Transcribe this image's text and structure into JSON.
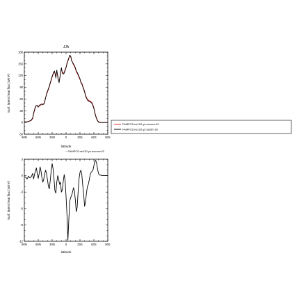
{
  "chart_data": [
    {
      "type": "line",
      "title": "JJA",
      "xlabel": "latitude",
      "ylabel": "Surf. latent heat flux (W/m²)",
      "x_tick_labels": [
        "90N",
        "60N",
        "30N",
        "0",
        "30S",
        "60S",
        "90S"
      ],
      "x_tick_values": [
        90,
        60,
        30,
        0,
        -30,
        -60,
        -90
      ],
      "xlim": [
        90,
        -90
      ],
      "ylim": [
        -30,
        180
      ],
      "y_ticks": [
        -30,
        0,
        30,
        60,
        90,
        120,
        150,
        180
      ],
      "series": [
        {
          "name": "FAMPC5.ne120.ys.noconv.02",
          "color": "#e02020",
          "x": [
            90,
            85,
            80,
            75,
            72,
            70,
            67,
            65,
            62,
            60,
            57,
            55,
            52,
            50,
            47,
            45,
            42,
            40,
            37,
            35,
            32,
            30,
            27,
            25,
            22,
            20,
            17,
            15,
            12,
            10,
            8,
            5,
            3,
            0,
            -2,
            -5,
            -8,
            -10,
            -12,
            -15,
            -17,
            -20,
            -22,
            -25,
            -27,
            -30,
            -32,
            -35,
            -37,
            -40,
            -42,
            -45,
            -47,
            -50,
            -52,
            -55,
            -57,
            -60,
            -62,
            -65,
            -68,
            -70,
            -72,
            -75,
            -80,
            -85,
            -90
          ],
          "values": [
            2,
            2,
            3,
            5,
            10,
            22,
            35,
            42,
            44,
            40,
            45,
            44,
            48,
            46,
            50,
            60,
            72,
            78,
            88,
            96,
            108,
            116,
            126,
            130,
            118,
            132,
            110,
            104,
            124,
            138,
            128,
            126,
            132,
            142,
            150,
            160,
            172,
            168,
            160,
            150,
            146,
            138,
            130,
            124,
            118,
            110,
            104,
            98,
            90,
            80,
            70,
            62,
            58,
            56,
            55,
            52,
            48,
            38,
            26,
            14,
            5,
            2,
            1,
            0,
            0,
            0,
            0
          ]
        },
        {
          "name": "FAMPC5.ne120.ys.tau5m.02",
          "color": "#000000",
          "x": [
            90,
            85,
            80,
            75,
            72,
            70,
            67,
            65,
            62,
            60,
            57,
            55,
            52,
            50,
            47,
            45,
            42,
            40,
            37,
            35,
            32,
            30,
            27,
            25,
            22,
            20,
            17,
            15,
            12,
            10,
            8,
            5,
            3,
            0,
            -2,
            -5,
            -8,
            -10,
            -12,
            -15,
            -17,
            -20,
            -22,
            -25,
            -27,
            -30,
            -32,
            -35,
            -37,
            -40,
            -42,
            -45,
            -47,
            -50,
            -52,
            -55,
            -57,
            -60,
            -62,
            -65,
            -68,
            -70,
            -72,
            -75,
            -80,
            -85,
            -90
          ],
          "values": [
            2,
            1,
            3,
            6,
            12,
            24,
            37,
            43,
            43,
            39,
            44,
            46,
            47,
            45,
            49,
            58,
            74,
            80,
            90,
            98,
            110,
            118,
            128,
            132,
            114,
            134,
            112,
            102,
            126,
            140,
            126,
            124,
            130,
            140,
            152,
            162,
            172,
            170,
            158,
            152,
            148,
            140,
            132,
            126,
            120,
            112,
            102,
            96,
            88,
            78,
            68,
            60,
            56,
            54,
            53,
            50,
            46,
            36,
            24,
            12,
            4,
            1,
            0,
            0,
            0,
            0,
            0
          ]
        }
      ],
      "legend_position": "right"
    },
    {
      "type": "line",
      "title": "",
      "xlabel": "latitude",
      "ylabel": "Surf. latent heat flux (W/m²)",
      "x_tick_labels": [
        "90N",
        "60N",
        "30N",
        "0",
        "30S",
        "60S",
        "90S"
      ],
      "x_tick_values": [
        90,
        60,
        30,
        0,
        -30,
        -60,
        -90
      ],
      "xlim": [
        90,
        -90
      ],
      "ylim": [
        -12,
        3
      ],
      "y_ticks": [
        -12,
        -9,
        -6,
        -3,
        0,
        3
      ],
      "series": [
        {
          "name": "− FAMPC5.ne120.ys.noconv.02",
          "color": "#000000",
          "x": [
            90,
            87,
            84,
            81,
            78,
            75,
            72,
            70,
            68,
            66,
            64,
            62,
            60,
            58,
            56,
            54,
            52,
            50,
            48,
            46,
            44,
            42,
            40,
            38,
            36,
            34,
            32,
            30,
            28,
            26,
            24,
            22,
            20,
            18,
            16,
            14,
            12,
            10,
            8,
            6,
            4,
            2,
            0,
            -2,
            -4,
            -6,
            -8,
            -10,
            -12,
            -14,
            -16,
            -18,
            -20,
            -22,
            -24,
            -26,
            -28,
            -30,
            -32,
            -34,
            -36,
            -38,
            -40,
            -42,
            -44,
            -46,
            -48,
            -50,
            -52,
            -54,
            -56,
            -58,
            -60,
            -62,
            -64,
            -66,
            -68,
            -70,
            -72,
            -75,
            -78,
            -81,
            -84,
            -87,
            -90
          ],
          "values": [
            -0.2,
            -0.3,
            -0.6,
            -0.1,
            -0.4,
            -0.2,
            0.4,
            -0.6,
            0.2,
            0.9,
            1.4,
            0.3,
            -0.5,
            0.4,
            1.6,
            0.8,
            -0.4,
            -1.2,
            -0.6,
            0.4,
            1.0,
            0.3,
            -0.8,
            -2.0,
            -2.4,
            -0.8,
            1.0,
            2.2,
            1.2,
            -0.6,
            -2.8,
            -3.2,
            -1.2,
            0.0,
            -0.6,
            -1.6,
            -1.2,
            -3.0,
            -2.6,
            -1.0,
            0.2,
            -1.0,
            -3.8,
            -7.2,
            -11.8,
            -8.0,
            -4.6,
            -4.0,
            -3.6,
            -3.0,
            -2.2,
            -2.8,
            -4.4,
            -6.6,
            -5.8,
            -3.0,
            -0.6,
            0.6,
            1.0,
            0.2,
            -1.8,
            -3.4,
            -5.6,
            -4.8,
            -3.2,
            -2.0,
            -1.6,
            -0.8,
            0.2,
            0.6,
            0.8,
            1.0,
            1.8,
            2.6,
            2.8,
            2.2,
            1.2,
            0.4,
            0.1,
            0.1,
            0.0,
            0.0,
            0.0,
            0.0,
            0.0
          ]
        }
      ]
    }
  ]
}
